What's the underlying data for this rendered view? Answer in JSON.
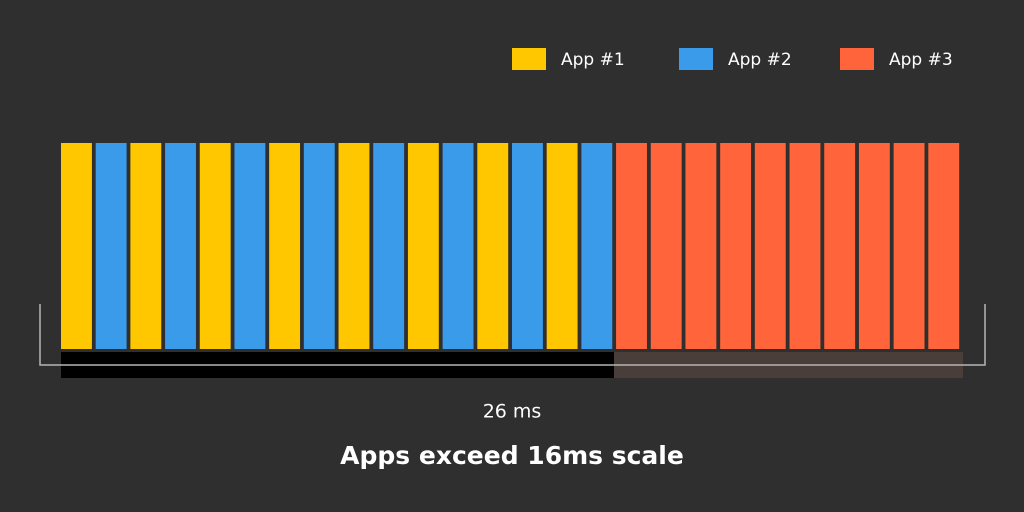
{
  "legend": [
    {
      "label": "App #1",
      "color": "#ffc700"
    },
    {
      "label": "App #2",
      "color": "#3a9bea"
    },
    {
      "label": "App #3",
      "color": "#ff643b"
    }
  ],
  "duration_label": "26 ms",
  "caption": "Apps exceed 16ms scale"
}
